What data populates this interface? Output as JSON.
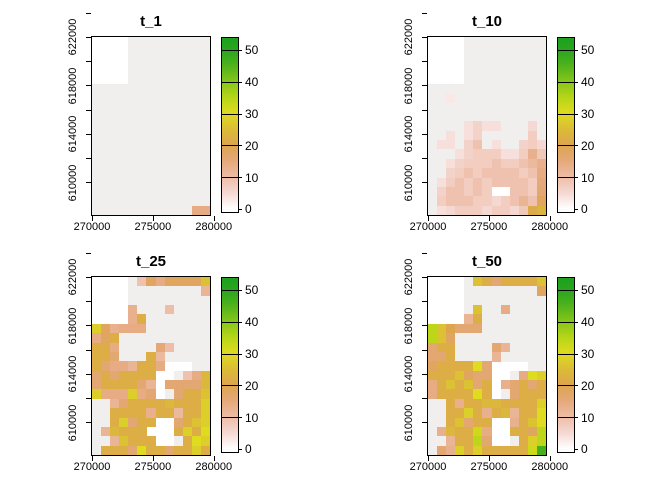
{
  "chart_data": {
    "type": "heatmap",
    "panels": [
      {
        "name": "t_1",
        "grid": [
          [
            null,
            null,
            null,
            null,
            0,
            0,
            0,
            0,
            0,
            0,
            0,
            0,
            0
          ],
          [
            null,
            null,
            null,
            null,
            0,
            0,
            0,
            0,
            0,
            0,
            0,
            0,
            0
          ],
          [
            null,
            null,
            null,
            null,
            0,
            0,
            0,
            0,
            0,
            0,
            0,
            0,
            0
          ],
          [
            null,
            null,
            null,
            null,
            0,
            0,
            0,
            0,
            0,
            0,
            0,
            0,
            0
          ],
          [
            null,
            null,
            null,
            null,
            0,
            0,
            0,
            0,
            0,
            0,
            0,
            0,
            0
          ],
          [
            0,
            0,
            0,
            0,
            0,
            0,
            0,
            0,
            0,
            0,
            0,
            0,
            0
          ],
          [
            0,
            0,
            0,
            0,
            0,
            0,
            0,
            0,
            0,
            0,
            0,
            0,
            0
          ],
          [
            0,
            0,
            0,
            0,
            0,
            0,
            0,
            0,
            0,
            0,
            0,
            0,
            0
          ],
          [
            0,
            0,
            0,
            0,
            0,
            0,
            0,
            0,
            0,
            0,
            0,
            0,
            0
          ],
          [
            0,
            0,
            0,
            0,
            0,
            0,
            0,
            0,
            0,
            0,
            0,
            0,
            0
          ],
          [
            0,
            0,
            0,
            0,
            0,
            0,
            0,
            0,
            0,
            0,
            0,
            0,
            0
          ],
          [
            0,
            0,
            0,
            0,
            0,
            0,
            0,
            0,
            0,
            0,
            0,
            0,
            0
          ],
          [
            0,
            0,
            0,
            0,
            0,
            0,
            0,
            0,
            0,
            0,
            0,
            0,
            0
          ],
          [
            0,
            0,
            0,
            0,
            0,
            0,
            0,
            0,
            0,
            0,
            0,
            0,
            0
          ],
          [
            0,
            0,
            0,
            0,
            0,
            0,
            0,
            0,
            0,
            0,
            0,
            0,
            0
          ],
          [
            0,
            0,
            0,
            0,
            0,
            0,
            0,
            0,
            0,
            0,
            0,
            0,
            0
          ],
          [
            0,
            0,
            0,
            0,
            0,
            0,
            0,
            0,
            0,
            0,
            0,
            0,
            0
          ],
          [
            0,
            0,
            0,
            0,
            0,
            0,
            0,
            0,
            0,
            0,
            0,
            0,
            0
          ],
          [
            0,
            0,
            0,
            0,
            0,
            0,
            0,
            0,
            0,
            0,
            0,
            14,
            14
          ]
        ]
      },
      {
        "name": "t_10",
        "grid": [
          [
            null,
            null,
            null,
            null,
            0,
            0,
            0,
            0,
            0,
            0,
            0,
            0,
            0
          ],
          [
            null,
            null,
            null,
            null,
            0,
            0,
            0,
            0,
            0,
            0,
            0,
            0,
            0
          ],
          [
            null,
            null,
            null,
            null,
            0,
            0,
            0,
            0,
            0,
            0,
            0,
            0,
            0
          ],
          [
            null,
            null,
            null,
            null,
            0,
            0,
            0,
            0,
            0,
            0,
            0,
            0,
            0
          ],
          [
            null,
            null,
            null,
            null,
            0,
            0,
            0,
            0,
            0,
            0,
            0,
            0,
            0
          ],
          [
            0,
            0,
            0,
            0,
            0,
            0,
            0,
            0,
            0,
            0,
            0,
            0,
            0
          ],
          [
            0,
            0,
            3,
            0,
            0,
            0,
            0,
            0,
            0,
            0,
            0,
            0,
            0
          ],
          [
            0,
            0,
            0,
            0,
            0,
            0,
            0,
            0,
            0,
            0,
            0,
            0,
            0
          ],
          [
            0,
            0,
            0,
            0,
            0,
            0,
            0,
            0,
            0,
            0,
            0,
            0,
            0
          ],
          [
            0,
            0,
            0,
            0,
            4,
            6,
            4,
            4,
            0,
            0,
            0,
            5,
            0
          ],
          [
            0,
            0,
            4,
            0,
            4,
            6,
            0,
            0,
            0,
            0,
            0,
            7,
            0
          ],
          [
            0,
            4,
            4,
            0,
            6,
            9,
            0,
            4,
            0,
            0,
            6,
            7,
            5
          ],
          [
            0,
            0,
            0,
            4,
            6,
            7,
            7,
            7,
            4,
            4,
            7,
            13,
            8
          ],
          [
            0,
            0,
            4,
            6,
            7,
            7,
            7,
            9,
            7,
            7,
            9,
            11,
            13
          ],
          [
            0,
            0,
            6,
            7,
            9,
            7,
            9,
            9,
            9,
            9,
            7,
            9,
            14
          ],
          [
            0,
            4,
            7,
            9,
            7,
            9,
            7,
            9,
            9,
            9,
            9,
            7,
            15
          ],
          [
            0,
            6,
            9,
            9,
            7,
            9,
            7,
            null,
            null,
            9,
            9,
            7,
            16
          ],
          [
            0,
            7,
            9,
            9,
            9,
            7,
            7,
            5,
            7,
            9,
            12,
            9,
            18
          ],
          [
            0,
            4,
            5,
            7,
            7,
            7,
            5,
            7,
            7,
            5,
            8,
            21,
            23
          ]
        ]
      },
      {
        "name": "t_25",
        "grid": [
          [
            null,
            null,
            null,
            null,
            0,
            9,
            18,
            14,
            18,
            18,
            18,
            18,
            26
          ],
          [
            null,
            null,
            null,
            null,
            0,
            0,
            0,
            0,
            0,
            0,
            0,
            0,
            12
          ],
          [
            null,
            null,
            null,
            null,
            0,
            0,
            0,
            0,
            0,
            0,
            0,
            0,
            0
          ],
          [
            null,
            null,
            null,
            null,
            13,
            0,
            0,
            0,
            10,
            0,
            0,
            0,
            0
          ],
          [
            null,
            null,
            null,
            null,
            13,
            22,
            0,
            0,
            0,
            0,
            0,
            0,
            0
          ],
          [
            28,
            18,
            13,
            14,
            14,
            14,
            0,
            0,
            0,
            0,
            0,
            0,
            0
          ],
          [
            14,
            18,
            22,
            0,
            0,
            0,
            0,
            0,
            0,
            0,
            0,
            0,
            0
          ],
          [
            22,
            22,
            14,
            0,
            0,
            0,
            0,
            15,
            10,
            0,
            0,
            0,
            0
          ],
          [
            22,
            22,
            16,
            0,
            0,
            0,
            22,
            11,
            0,
            0,
            0,
            0,
            0
          ],
          [
            22,
            16,
            14,
            14,
            12,
            22,
            22,
            14,
            null,
            null,
            null,
            0,
            0
          ],
          [
            16,
            22,
            16,
            22,
            22,
            22,
            22,
            null,
            null,
            0,
            9,
            14,
            24
          ],
          [
            16,
            22,
            22,
            22,
            22,
            16,
            12,
            null,
            16,
            16,
            16,
            16,
            24
          ],
          [
            28,
            14,
            14,
            14,
            28,
            14,
            16,
            null,
            0,
            16,
            22,
            22,
            26
          ],
          [
            0,
            0,
            12,
            16,
            22,
            22,
            22,
            22,
            24,
            22,
            22,
            22,
            28
          ],
          [
            0,
            0,
            22,
            22,
            22,
            22,
            13,
            22,
            22,
            11,
            22,
            22,
            28
          ],
          [
            0,
            0,
            22,
            28,
            16,
            22,
            22,
            null,
            null,
            16,
            22,
            26,
            28
          ],
          [
            0,
            12,
            24,
            22,
            22,
            22,
            null,
            null,
            null,
            22,
            28,
            22,
            30
          ],
          [
            0,
            0,
            12,
            26,
            22,
            22,
            22,
            null,
            null,
            0,
            22,
            30,
            28
          ],
          [
            0,
            22,
            22,
            22,
            16,
            30,
            22,
            22,
            16,
            22,
            22,
            28,
            22
          ]
        ]
      },
      {
        "name": "t_50",
        "grid": [
          [
            null,
            null,
            null,
            null,
            0,
            26,
            22,
            16,
            22,
            22,
            22,
            22,
            26
          ],
          [
            null,
            null,
            null,
            null,
            0,
            0,
            0,
            0,
            0,
            0,
            0,
            0,
            18
          ],
          [
            null,
            null,
            null,
            null,
            0,
            0,
            0,
            0,
            0,
            0,
            0,
            0,
            0
          ],
          [
            null,
            null,
            null,
            null,
            0,
            26,
            0,
            0,
            14,
            0,
            0,
            0,
            0
          ],
          [
            null,
            null,
            null,
            null,
            12,
            22,
            0,
            0,
            0,
            0,
            0,
            0,
            0
          ],
          [
            34,
            26,
            20,
            16,
            16,
            16,
            0,
            0,
            0,
            0,
            0,
            0,
            0
          ],
          [
            34,
            26,
            18,
            0,
            0,
            0,
            0,
            0,
            0,
            0,
            0,
            0,
            0
          ],
          [
            16,
            22,
            22,
            0,
            0,
            0,
            0,
            16,
            12,
            0,
            0,
            0,
            0
          ],
          [
            16,
            16,
            22,
            0,
            0,
            0,
            0,
            12,
            0,
            0,
            0,
            0,
            0
          ],
          [
            18,
            22,
            22,
            22,
            22,
            30,
            16,
            null,
            null,
            null,
            null,
            0,
            0
          ],
          [
            22,
            22,
            22,
            26,
            18,
            16,
            16,
            null,
            null,
            0,
            14,
            30,
            28
          ],
          [
            14,
            22,
            26,
            22,
            26,
            16,
            22,
            null,
            13,
            16,
            22,
            16,
            22
          ],
          [
            14,
            22,
            22,
            22,
            22,
            30,
            22,
            null,
            0,
            16,
            22,
            22,
            22
          ],
          [
            0,
            0,
            22,
            13,
            22,
            22,
            24,
            24,
            22,
            22,
            22,
            22,
            28
          ],
          [
            0,
            0,
            22,
            22,
            28,
            22,
            13,
            22,
            24,
            12,
            22,
            22,
            30
          ],
          [
            0,
            0,
            22,
            26,
            16,
            22,
            22,
            null,
            null,
            13,
            22,
            26,
            30
          ],
          [
            0,
            13,
            24,
            22,
            22,
            32,
            14,
            null,
            null,
            22,
            22,
            18,
            34
          ],
          [
            0,
            0,
            12,
            22,
            22,
            34,
            16,
            null,
            null,
            0,
            22,
            28,
            34
          ],
          [
            0,
            16,
            13,
            28,
            22,
            28,
            22,
            22,
            22,
            22,
            22,
            32,
            46
          ]
        ]
      }
    ],
    "grid_size": {
      "cols": 13,
      "rows": 19
    },
    "x_axis": {
      "ticks": [
        270000,
        275000,
        280000
      ]
    },
    "y_axis": {
      "major_ticks": [
        622000,
        618000,
        614000,
        610000
      ],
      "minor_ticks": [
        624000,
        620000,
        616000,
        612000
      ]
    },
    "legend": {
      "ticks": [
        0,
        10,
        20,
        30,
        40,
        50
      ],
      "range": [
        0,
        53
      ],
      "position": "right"
    },
    "palette": {
      "na_color": "#ffffff",
      "zero_color": "#f0efed",
      "stops": [
        [
          0,
          "#ffffff"
        ],
        [
          5,
          "#f5d8d2"
        ],
        [
          10,
          "#edbda6"
        ],
        [
          15,
          "#e5a87a"
        ],
        [
          20,
          "#dca54e"
        ],
        [
          25,
          "#dbbc37"
        ],
        [
          30,
          "#dfdb1f"
        ],
        [
          35,
          "#b5d517"
        ],
        [
          40,
          "#84c51a"
        ],
        [
          45,
          "#4eb21c"
        ],
        [
          50,
          "#27a51f"
        ],
        [
          54,
          "#1da01d"
        ]
      ]
    }
  }
}
